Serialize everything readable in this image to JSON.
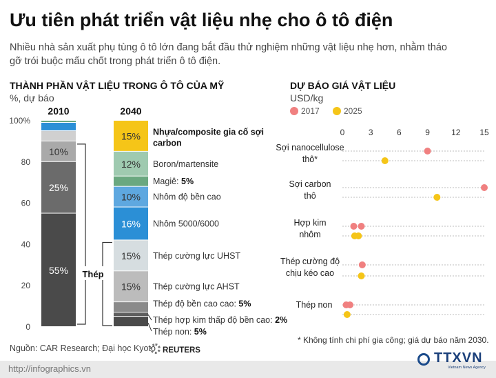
{
  "title": "Ưu tiên phát triển vật liệu nhẹ cho ô tô điện",
  "subtitle": "Nhiều nhà sản xuất phụ tùng ô tô lớn đang bắt đầu thử nghiệm những vật liệu nhẹ hơn, nhằm tháo gỡ trói buộc mấu chốt trong phát triển ô tô điện.",
  "left_section": {
    "title": "THÀNH PHẦN VẬT LIỆU TRONG Ô TÔ CỦA MỸ",
    "unit": "%, dự báo"
  },
  "right_section": {
    "title": "DỰ BÁO GIÁ VẬT LIỆU",
    "unit": "USD/kg"
  },
  "source": "Nguồn: CAR Research; Đại học Kyoto",
  "reuters": "REUTERS",
  "footnote": "* Không tính chi phí gia công; giá dự báo năm 2030.",
  "footer_url": "http://infographics.vn",
  "logo": {
    "text": "TTXVN",
    "sub": "Vietnam News Agency"
  },
  "colors": {
    "y2017": "#f08080",
    "y2025": "#f5c518",
    "steel_dark": "#4a4a4a",
    "steel_mid": "#6b6b6b",
    "steel_light": "#a9a9a9",
    "aluminum_dark": "#2b8fd6",
    "aluminum_light": "#5ea8e0",
    "magie": "#6aa880",
    "boron": "#9fcab0",
    "composite": "#f5c518",
    "uhst": "#d6dde0"
  },
  "chart_data": [
    {
      "type": "bar",
      "stacked": true,
      "title": "THÀNH PHẦN VẬT LIỆU TRONG Ô TÔ CỦA MỸ",
      "ylabel": "%, dự báo",
      "ylim": [
        0,
        100
      ],
      "yticks": [
        "0",
        "20",
        "40",
        "60",
        "80",
        "100%"
      ],
      "categories": [
        "2010",
        "2040"
      ],
      "bars": [
        {
          "category": "2010",
          "segments": [
            {
              "value": 55,
              "label": "55%",
              "color": "#4a4a4a"
            },
            {
              "value": 25,
              "label": "25%",
              "color": "#6b6b6b"
            },
            {
              "value": 10,
              "label": "10%",
              "color": "#a9a9a9"
            },
            {
              "value": 5,
              "label": "",
              "color": "#d0d0d0"
            },
            {
              "value": 4,
              "label": "",
              "color": "#2b8fd6"
            },
            {
              "value": 1,
              "label": "",
              "color": "#6aa880"
            }
          ]
        },
        {
          "category": "2040",
          "segments": [
            {
              "value": 5,
              "label": "",
              "name": "Thép non",
              "name_value": "5%",
              "color": "#4a4a4a"
            },
            {
              "value": 2,
              "label": "",
              "name": "Thép hợp kim thấp độ bền cao",
              "name_value": "2%",
              "color": "#5e5e5e"
            },
            {
              "value": 5,
              "label": "",
              "name": "Thép độ bền cao cao",
              "name_value": "5%",
              "color": "#8a8a8a"
            },
            {
              "value": 15,
              "label": "15%",
              "name": "Thép cường lực AHST",
              "name_value": "",
              "color": "#bcbcbc"
            },
            {
              "value": 15,
              "label": "15%",
              "name": "Thép cường lực UHST",
              "name_value": "",
              "color": "#d6dde0"
            },
            {
              "value": 16,
              "label": "16%",
              "name": "Nhôm 5000/6000",
              "name_value": "",
              "color": "#2b8fd6"
            },
            {
              "value": 10,
              "label": "10%",
              "name": "Nhôm độ bền cao",
              "name_value": "",
              "color": "#5ea8e0"
            },
            {
              "value": 5,
              "label": "",
              "name": "Magiê",
              "name_value": "5%",
              "color": "#6aa880"
            },
            {
              "value": 12,
              "label": "12%",
              "name": "Boron/martensite",
              "name_value": "",
              "color": "#9fcab0"
            },
            {
              "value": 15,
              "label": "15%",
              "name": "Nhựa/composite gia cố sợi carbon",
              "name_value": "",
              "color": "#f5c518",
              "bold": true
            }
          ]
        }
      ],
      "bracket_label": "Thép"
    },
    {
      "type": "scatter",
      "title": "DỰ BÁO GIÁ VẬT LIỆU",
      "xlabel": "USD/kg",
      "xlim": [
        0,
        15
      ],
      "xticks": [
        0,
        3,
        6,
        9,
        12,
        15
      ],
      "series": [
        {
          "name": "2017",
          "color": "#f08080"
        },
        {
          "name": "2025",
          "color": "#f5c518"
        }
      ],
      "categories": [
        {
          "name": "Sợi nanocellulose thô*",
          "values_2017": [
            9
          ],
          "values_2025": [
            4.5
          ]
        },
        {
          "name": "Sợi carbon thô",
          "values_2017": [
            15
          ],
          "values_2025": [
            10
          ]
        },
        {
          "name": "Hợp kim nhôm",
          "values_2017": [
            1.2,
            2
          ],
          "values_2025": [
            1.3,
            1.7
          ]
        },
        {
          "name": "Thép cường độ chịu kéo cao",
          "values_2017": [
            2.1
          ],
          "values_2025": [
            2
          ]
        },
        {
          "name": "Thép non",
          "values_2017": [
            0.4,
            0.8
          ],
          "values_2025": [
            0.5
          ]
        }
      ]
    }
  ]
}
